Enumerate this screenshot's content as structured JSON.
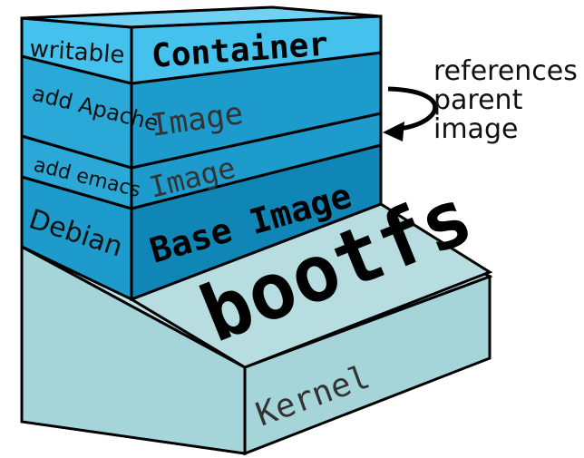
{
  "diagram": {
    "layers": [
      {
        "id": "container",
        "side_label": "writable",
        "front_label": "Container"
      },
      {
        "id": "apache",
        "side_label": "add Apache",
        "front_label": "Image"
      },
      {
        "id": "emacs",
        "side_label": "add emacs",
        "front_label": "Image"
      },
      {
        "id": "debian",
        "side_label": "Debian",
        "front_label": "Base Image"
      },
      {
        "id": "bootfs",
        "front_label": "bootfs"
      },
      {
        "id": "kernel",
        "front_label": "Kernel"
      }
    ],
    "annotation": {
      "line1": "references",
      "line2": "parent",
      "line3": "image"
    },
    "colors": {
      "container": "#45c1ee",
      "image": "#1d9bcc",
      "base": "#0f86b6",
      "bootfs": "#a6d5d9",
      "kernel": "#a6d5d9",
      "outline": "#000000"
    }
  }
}
